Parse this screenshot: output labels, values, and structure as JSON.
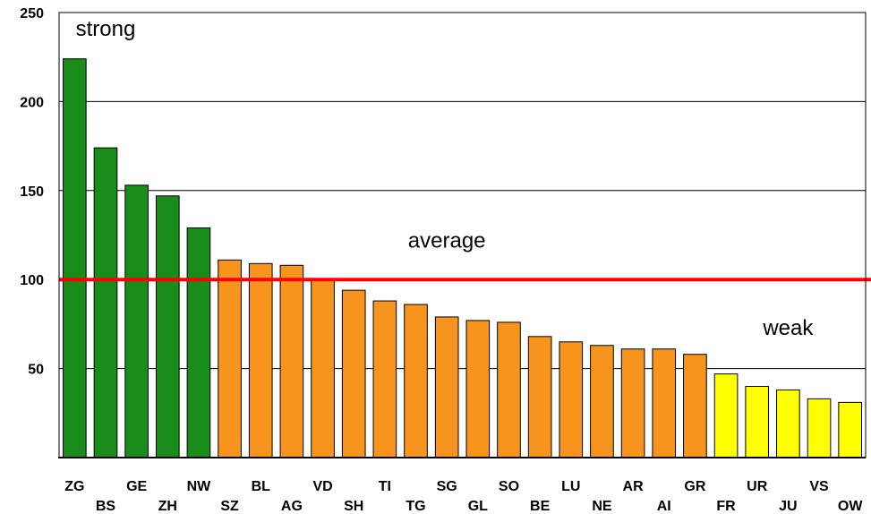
{
  "chart_data": {
    "type": "bar",
    "title": "",
    "xlabel": "",
    "ylabel": "",
    "ylim": [
      0,
      250
    ],
    "yticks": [
      50,
      100,
      150,
      200,
      250
    ],
    "grid": true,
    "categories": [
      "ZG",
      "BS",
      "GE",
      "ZH",
      "NW",
      "SZ",
      "BL",
      "AG",
      "VD",
      "SH",
      "TI",
      "TG",
      "SG",
      "GL",
      "SO",
      "BE",
      "LU",
      "NE",
      "AR",
      "AI",
      "GR",
      "FR",
      "UR",
      "JU",
      "VS",
      "OW"
    ],
    "values": [
      224,
      174,
      153,
      147,
      129,
      111,
      109,
      108,
      100,
      94,
      88,
      86,
      79,
      77,
      76,
      68,
      65,
      63,
      61,
      61,
      58,
      47,
      40,
      38,
      33,
      31
    ],
    "bar_groups": [
      "strong",
      "strong",
      "strong",
      "strong",
      "strong",
      "medium",
      "medium",
      "medium",
      "medium",
      "medium",
      "medium",
      "medium",
      "medium",
      "medium",
      "medium",
      "medium",
      "medium",
      "medium",
      "medium",
      "medium",
      "medium",
      "weak",
      "weak",
      "weak",
      "weak",
      "weak"
    ],
    "group_colors": {
      "strong": "#1a8c1a",
      "medium": "#f7941d",
      "weak": "#ffff00"
    },
    "reference_line": {
      "value": 100,
      "color": "#ff0000"
    },
    "annotations": [
      {
        "text": "strong",
        "x_category": "BS",
        "y": 237
      },
      {
        "text": "average",
        "x_category": "SG",
        "y": 118
      },
      {
        "text": "weak",
        "x_category": "JU",
        "y": 69
      }
    ]
  }
}
